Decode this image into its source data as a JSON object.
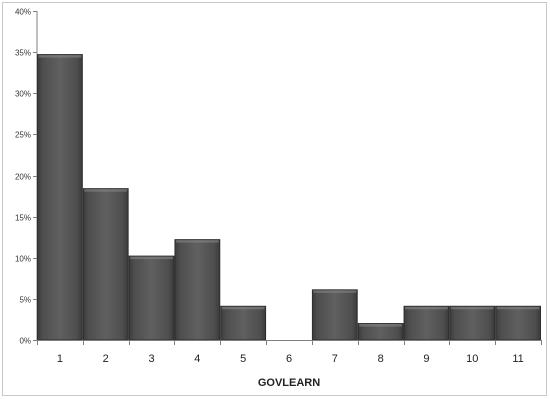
{
  "chart_data": {
    "type": "bar",
    "title": "",
    "xlabel": "GOVLEARN",
    "ylabel": "",
    "categories": [
      "1",
      "2",
      "3",
      "4",
      "5",
      "6",
      "7",
      "8",
      "9",
      "10",
      "11"
    ],
    "values": [
      34.7,
      18.4,
      10.2,
      12.2,
      4.1,
      0,
      6.1,
      2.0,
      4.1,
      4.1,
      4.1
    ],
    "ylim": [
      0,
      40
    ],
    "yticks": [
      0,
      5,
      10,
      15,
      20,
      25,
      30,
      35,
      40
    ],
    "ytick_labels": [
      "0%",
      "5%",
      "10%",
      "15%",
      "20%",
      "25%",
      "30%",
      "35%",
      "40%"
    ],
    "grid": false,
    "legend": "none",
    "bar_color": "#555555"
  }
}
